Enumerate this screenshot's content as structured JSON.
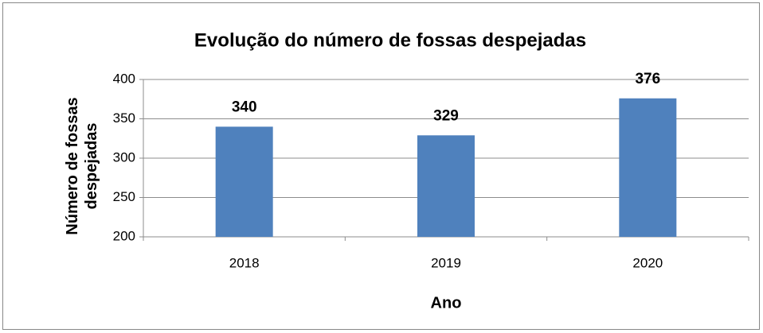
{
  "chart_data": {
    "type": "bar",
    "title": "Evolução do número de fossas despejadas",
    "xlabel": "Ano",
    "ylabel": "Número de fossas despejadas",
    "categories": [
      "2018",
      "2019",
      "2020"
    ],
    "values": [
      340,
      329,
      376
    ],
    "color": "#4f81bd",
    "ylim": [
      200,
      400
    ],
    "yticks": [
      200,
      250,
      300,
      350,
      400
    ],
    "grid": true
  }
}
